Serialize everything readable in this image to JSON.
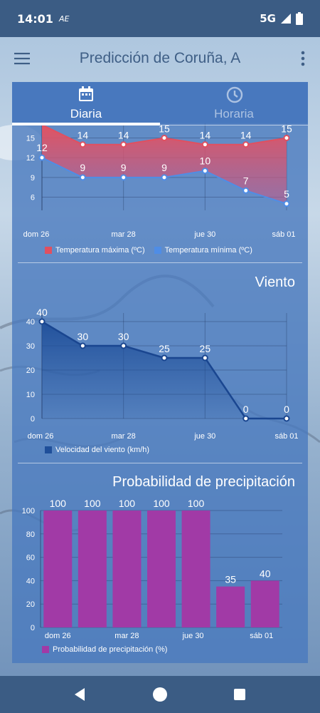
{
  "status_bar": {
    "time": "14:01",
    "carrier_icon": "AE",
    "network": "5G",
    "icons": [
      "signal-icon",
      "battery-icon"
    ]
  },
  "app_bar": {
    "title": "Predicción de Coruña, A",
    "menu_icon": "hamburger-menu-icon",
    "more_icon": "more-vert-icon"
  },
  "tabs": [
    {
      "label": "Diaria",
      "icon": "calendar-icon",
      "selected": true
    },
    {
      "label": "Horaria",
      "icon": "clock-icon",
      "selected": false
    }
  ],
  "sections": {
    "wind_title": "Viento",
    "precip_title": "Probabilidad de precipitación"
  },
  "colors": {
    "max_temp": "#e05060",
    "min_temp": "#4f8de6",
    "wind": "#1f4f9a",
    "precip": "#a13aa6",
    "card_bg": "#4878be",
    "bars": "#3b5c84"
  },
  "chart_data": [
    {
      "type": "line",
      "title": "",
      "x_tick_labels": [
        "dom 26",
        "mar 28",
        "jue 30",
        "sáb 01"
      ],
      "y_tick_labels": [
        "6",
        "9",
        "12",
        "15"
      ],
      "x": [
        0,
        1,
        2,
        3,
        4,
        5,
        6
      ],
      "series": [
        {
          "name": "Temperatura máxima (ºC)",
          "values": [
            17,
            14,
            14,
            15,
            14,
            14,
            15
          ],
          "labels": [
            "",
            "14",
            "14",
            "15",
            "14",
            "14",
            "15"
          ],
          "color": "#e05060",
          "fill": true
        },
        {
          "name": "Temperatura mínima (ºC)",
          "values": [
            12,
            9,
            9,
            9,
            10,
            7,
            5
          ],
          "labels": [
            "12",
            "9",
            "9",
            "9",
            "10",
            "7",
            "5"
          ],
          "color": "#4f8de6",
          "fill": false
        }
      ],
      "ylim": [
        4,
        17
      ]
    },
    {
      "type": "area",
      "title": "Viento",
      "x_tick_labels": [
        "dom 26",
        "mar 28",
        "jue 30",
        "sáb 01"
      ],
      "y_tick_labels": [
        "0",
        "10",
        "20",
        "30",
        "40"
      ],
      "x": [
        0,
        1,
        2,
        3,
        4,
        5,
        6
      ],
      "series": [
        {
          "name": "Velocidad del viento (km/h)",
          "values": [
            40,
            30,
            30,
            25,
            25,
            0,
            0
          ],
          "labels": [
            "40",
            "30",
            "30",
            "25",
            "25",
            "0",
            "0"
          ],
          "color": "#1f4f9a"
        }
      ],
      "ylim": [
        0,
        40
      ]
    },
    {
      "type": "bar",
      "title": "Probabilidad de precipitación",
      "x_tick_labels": [
        "dom 26",
        "mar 28",
        "jue 30",
        "sáb 01"
      ],
      "y_tick_labels": [
        "0",
        "20",
        "40",
        "60",
        "80",
        "100"
      ],
      "series": [
        {
          "name": "Probabilidad de precipitación (%)",
          "values": [
            100,
            100,
            100,
            100,
            100,
            35,
            40
          ],
          "labels": [
            "100",
            "100",
            "100",
            "100",
            "100",
            "35",
            "40"
          ],
          "color": "#a13aa6"
        }
      ],
      "ylim": [
        0,
        100
      ]
    }
  ]
}
